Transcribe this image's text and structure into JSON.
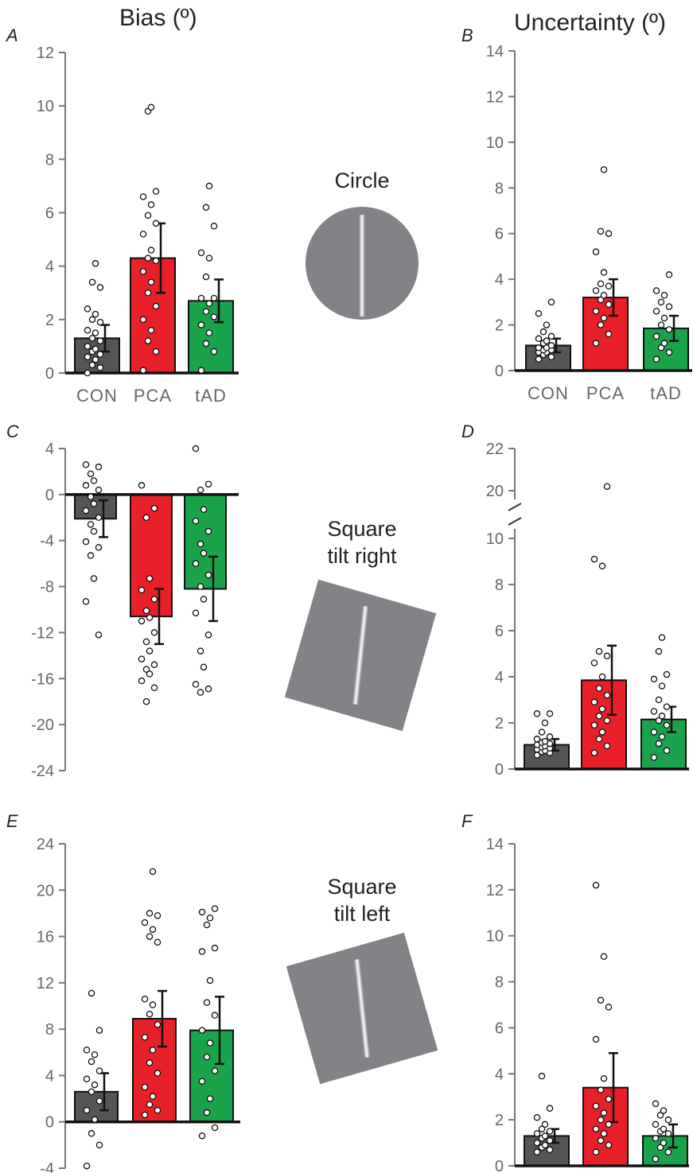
{
  "columns": {
    "bias_title": "Bias (º)",
    "uncertainty_title": "Uncertainty (º)"
  },
  "stimuli": [
    {
      "label": "Circle",
      "shape": "circle"
    },
    {
      "label": "Square\ntilt right",
      "shape": "square-tilt-right"
    },
    {
      "label": "Square\ntilt left",
      "shape": "square-tilt-left"
    }
  ],
  "colors": {
    "CON": "#555555",
    "PCA": "#e8202a",
    "tAD": "#1aa34a",
    "stimulus_gray": "#828386",
    "axis": "#777777"
  },
  "chart_data": [
    {
      "panel": "A",
      "type": "bar",
      "title": "Bias (º)",
      "categories": [
        "CON",
        "PCA",
        "tAD"
      ],
      "show_category_labels": true,
      "ylim": [
        0,
        12
      ],
      "yticks": [
        0,
        2,
        4,
        6,
        8,
        10,
        12
      ],
      "values": [
        1.3,
        4.3,
        2.7
      ],
      "error": [
        0.5,
        1.3,
        0.8
      ],
      "points": [
        [
          0.0,
          0.2,
          0.3,
          0.5,
          0.6,
          0.7,
          0.8,
          0.9,
          1.0,
          1.2,
          1.3,
          1.5,
          1.6,
          1.9,
          2.0,
          2.2,
          2.4,
          3.2,
          3.4,
          4.1
        ],
        [
          0.1,
          0.8,
          1.2,
          1.6,
          2.0,
          2.5,
          3.0,
          3.4,
          3.8,
          4.2,
          4.3,
          4.6,
          5.2,
          5.6,
          5.9,
          6.3,
          6.6,
          6.8,
          9.8,
          9.95
        ],
        [
          0.1,
          0.8,
          1.1,
          1.5,
          1.8,
          2.1,
          2.3,
          2.6,
          2.8,
          2.8,
          3.6,
          4.3,
          4.5,
          5.5,
          6.2,
          7.0
        ]
      ]
    },
    {
      "panel": "B",
      "type": "bar",
      "title": "Uncertainty (º)",
      "categories": [
        "CON",
        "PCA",
        "tAD"
      ],
      "show_category_labels": true,
      "ylim": [
        0,
        14
      ],
      "yticks": [
        0,
        2,
        4,
        6,
        8,
        10,
        12,
        14
      ],
      "values": [
        1.1,
        3.2,
        1.85
      ],
      "error": [
        0.3,
        0.8,
        0.55
      ],
      "points": [
        [
          0.5,
          0.6,
          0.7,
          0.8,
          0.8,
          0.9,
          0.9,
          1.0,
          1.0,
          1.1,
          1.2,
          1.3,
          1.4,
          1.5,
          1.7,
          2.0,
          2.5,
          3.0
        ],
        [
          1.2,
          1.6,
          2.0,
          2.3,
          2.6,
          2.9,
          3.1,
          3.3,
          3.5,
          3.7,
          3.8,
          4.3,
          5.2,
          6.0,
          6.1,
          8.8
        ],
        [
          0.5,
          0.8,
          1.0,
          1.2,
          1.5,
          1.8,
          2.0,
          2.3,
          2.6,
          2.8,
          3.0,
          3.3,
          3.5,
          4.2
        ]
      ]
    },
    {
      "panel": "C",
      "type": "bar",
      "categories": [
        "CON",
        "PCA",
        "tAD"
      ],
      "show_category_labels": false,
      "ylim": [
        -24,
        4
      ],
      "yticks": [
        -24,
        -20,
        -16,
        -12,
        -8,
        -4,
        0,
        4
      ],
      "values": [
        -2.1,
        -10.6,
        -8.2
      ],
      "error": [
        1.6,
        2.4,
        2.8
      ],
      "points": [
        [
          2.6,
          2.4,
          1.8,
          1.2,
          0.8,
          0.4,
          -0.2,
          -0.8,
          -1.4,
          -2.0,
          -2.6,
          -3.2,
          -4.1,
          -4.6,
          -5.3,
          -7.3,
          -9.3,
          -12.2
        ],
        [
          0.8,
          -1.2,
          -2.0,
          -7.3,
          -8.3,
          -9.1,
          -10.1,
          -10.7,
          -11.0,
          -12.0,
          -12.8,
          -13.6,
          -14.3,
          -14.8,
          -15.2,
          -15.6,
          -16.2,
          -16.8,
          -18.0
        ],
        [
          4.0,
          0.9,
          0.4,
          -1.3,
          -2.3,
          -3.2,
          -4.3,
          -5.1,
          -6.0,
          -7.0,
          -8.0,
          -9.1,
          -10.3,
          -12.2,
          -13.6,
          -15.0,
          -16.5,
          -16.9,
          -17.2
        ]
      ]
    },
    {
      "panel": "D",
      "type": "bar",
      "axis_break": true,
      "categories": [
        "CON",
        "PCA",
        "tAD"
      ],
      "show_category_labels": false,
      "ylim": [
        0,
        22
      ],
      "yticks": [
        0,
        2,
        4,
        6,
        8,
        10,
        20,
        22
      ],
      "values": [
        1.05,
        3.85,
        2.15
      ],
      "error": [
        0.25,
        1.5,
        0.55
      ],
      "points": [
        [
          0.6,
          0.7,
          0.75,
          0.8,
          0.85,
          0.9,
          0.95,
          1.0,
          1.05,
          1.1,
          1.15,
          1.2,
          1.3,
          1.4,
          1.6,
          2.0,
          2.4,
          2.4
        ],
        [
          0.7,
          1.0,
          1.3,
          1.6,
          1.9,
          2.1,
          2.3,
          2.6,
          2.9,
          3.2,
          3.5,
          4.0,
          4.6,
          4.9,
          5.1,
          8.8,
          9.1,
          20.2
        ],
        [
          0.5,
          0.8,
          1.1,
          1.4,
          1.6,
          1.9,
          2.1,
          2.3,
          2.5,
          2.7,
          3.0,
          3.6,
          3.9,
          4.1,
          5.1,
          5.7
        ]
      ]
    },
    {
      "panel": "E",
      "type": "bar",
      "categories": [
        "CON",
        "PCA",
        "tAD"
      ],
      "show_category_labels": false,
      "ylim": [
        -4,
        24
      ],
      "yticks": [
        -4,
        0,
        4,
        8,
        12,
        16,
        20,
        24
      ],
      "values": [
        2.6,
        8.9,
        7.9
      ],
      "error": [
        1.6,
        2.4,
        2.9
      ],
      "points": [
        [
          -3.8,
          -2.0,
          -1.0,
          0.2,
          1.0,
          1.8,
          2.6,
          3.2,
          3.7,
          4.4,
          5.2,
          5.8,
          6.2,
          7.9,
          11.1
        ],
        [
          0.6,
          1.0,
          1.5,
          2.2,
          3.0,
          4.2,
          5.1,
          6.2,
          7.3,
          8.4,
          9.3,
          10.1,
          10.6,
          15.5,
          16.0,
          16.6,
          17.2,
          17.8,
          18.0,
          21.6
        ],
        [
          -1.2,
          -0.5,
          0.8,
          2.0,
          3.5,
          4.4,
          5.6,
          6.8,
          7.9,
          9.2,
          10.3,
          12.2,
          14.7,
          15.0,
          17.0,
          17.6,
          18.1,
          18.4
        ]
      ]
    },
    {
      "panel": "F",
      "type": "bar",
      "categories": [
        "CON",
        "PCA",
        "tAD"
      ],
      "show_category_labels": false,
      "ylim": [
        0,
        14
      ],
      "yticks": [
        0,
        2,
        4,
        6,
        8,
        10,
        12,
        14
      ],
      "values": [
        1.3,
        3.4,
        1.3
      ],
      "error": [
        0.3,
        1.5,
        0.5
      ],
      "points": [
        [
          0.6,
          0.7,
          0.8,
          0.9,
          1.0,
          1.1,
          1.2,
          1.3,
          1.4,
          1.5,
          1.6,
          1.8,
          2.1,
          2.5,
          3.9
        ],
        [
          0.6,
          0.9,
          1.1,
          1.4,
          1.6,
          1.8,
          2.0,
          2.3,
          2.6,
          2.9,
          3.3,
          3.8,
          5.5,
          6.9,
          7.2,
          9.1,
          12.2
        ],
        [
          0.3,
          0.6,
          0.8,
          1.0,
          1.2,
          1.4,
          1.5,
          1.6,
          1.8,
          2.0,
          2.2,
          2.4,
          2.7
        ]
      ]
    }
  ]
}
